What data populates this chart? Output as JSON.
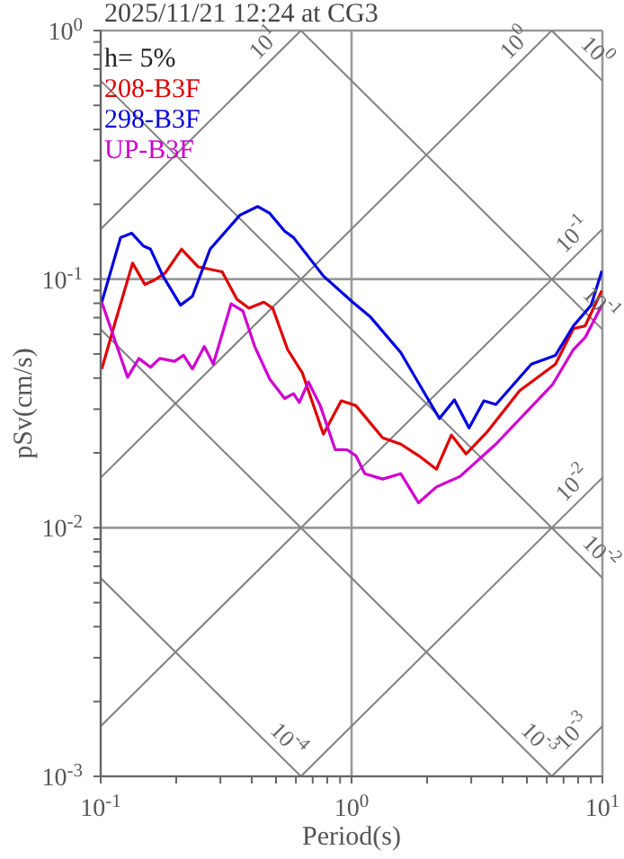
{
  "chart_data": {
    "type": "line",
    "title": "2025/11/21 12:24 at CG3",
    "xlabel": "Period(s)",
    "ylabel": "pSv(cm/s)",
    "legend_title": "h= 5%",
    "legend": "top left",
    "log": "xy",
    "grid": true,
    "marker": "none",
    "line_style": "solid",
    "xlim": [
      0.1,
      10
    ],
    "ylim": [
      0.001,
      1
    ],
    "xticks": [
      {
        "value": 0.1,
        "label": "10$^{-1}$"
      },
      {
        "value": 0.2,
        "label": null
      },
      {
        "value": 0.3,
        "label": null
      },
      {
        "value": 0.4,
        "label": null
      },
      {
        "value": 0.5,
        "label": null
      },
      {
        "value": 0.6,
        "label": null
      },
      {
        "value": 0.7,
        "label": null
      },
      {
        "value": 0.8,
        "label": null
      },
      {
        "value": 0.9,
        "label": null
      },
      {
        "value": 1,
        "label": "10$^{0}$"
      },
      {
        "value": 2,
        "label": null
      },
      {
        "value": 3,
        "label": null
      },
      {
        "value": 4,
        "label": null
      },
      {
        "value": 5,
        "label": null
      },
      {
        "value": 6,
        "label": null
      },
      {
        "value": 7,
        "label": null
      },
      {
        "value": 8,
        "label": null
      },
      {
        "value": 9,
        "label": null
      },
      {
        "value": 10,
        "label": "10$^{1}$"
      }
    ],
    "yticks": [
      {
        "value": 0.001,
        "label": "10$^{-3}$"
      },
      {
        "value": 0.002,
        "label": null
      },
      {
        "value": 0.003,
        "label": null
      },
      {
        "value": 0.004,
        "label": null
      },
      {
        "value": 0.005,
        "label": null
      },
      {
        "value": 0.006,
        "label": null
      },
      {
        "value": 0.007,
        "label": null
      },
      {
        "value": 0.008,
        "label": null
      },
      {
        "value": 0.009,
        "label": null
      },
      {
        "value": 0.01,
        "label": "10$^{-2}$"
      },
      {
        "value": 0.02,
        "label": null
      },
      {
        "value": 0.03,
        "label": null
      },
      {
        "value": 0.04,
        "label": null
      },
      {
        "value": 0.05,
        "label": null
      },
      {
        "value": 0.06,
        "label": null
      },
      {
        "value": 0.07,
        "label": null
      },
      {
        "value": 0.08,
        "label": null
      },
      {
        "value": 0.09,
        "label": null
      },
      {
        "value": 0.1,
        "label": "10$^{-1}$"
      },
      {
        "value": 0.2,
        "label": null
      },
      {
        "value": 0.3,
        "label": null
      },
      {
        "value": 0.4,
        "label": null
      },
      {
        "value": 0.5,
        "label": null
      },
      {
        "value": 0.6,
        "label": null
      },
      {
        "value": 0.7,
        "label": null
      },
      {
        "value": 0.8,
        "label": null
      },
      {
        "value": 0.9,
        "label": null
      },
      {
        "value": 1,
        "label": "10$^{0}$"
      }
    ],
    "series": [
      {
        "type": "line",
        "color": "#808080",
        "x": [
          0.1,
          0.628
        ],
        "values": [
          0.159,
          1
        ]
      },
      {
        "type": "line",
        "color": "#808080",
        "x": [
          0.1,
          6.28
        ],
        "values": [
          0.0159,
          1
        ]
      },
      {
        "type": "line",
        "color": "#808080",
        "x": [
          0.1,
          10
        ],
        "values": [
          0.00159,
          0.159
        ]
      },
      {
        "type": "line",
        "color": "#808080",
        "x": [
          0.628,
          10
        ],
        "values": [
          0.001,
          0.0159
        ]
      },
      {
        "type": "line",
        "color": "#808080",
        "x": [
          6.28,
          10
        ],
        "values": [
          0.001,
          0.00159
        ]
      },
      {
        "type": "line",
        "color": "#808080",
        "x": [
          6.28,
          10
        ],
        "values": [
          1,
          0.628
        ]
      },
      {
        "type": "line",
        "color": "#808080",
        "x": [
          0.628,
          10
        ],
        "values": [
          1,
          0.0628
        ]
      },
      {
        "type": "line",
        "color": "#808080",
        "x": [
          0.1,
          10
        ],
        "values": [
          0.628,
          0.00628
        ]
      },
      {
        "type": "line",
        "color": "#808080",
        "x": [
          0.1,
          6.28
        ],
        "values": [
          0.0628,
          0.001
        ]
      },
      {
        "type": "line",
        "color": "#808080",
        "x": [
          0.1,
          0.628
        ],
        "values": [
          0.00628,
          0.001
        ]
      },
      {
        "name": "208-B3F",
        "color": "#e00000",
        "x": [
          0.101,
          0.114,
          0.134,
          0.15,
          0.163,
          0.181,
          0.21,
          0.245,
          0.305,
          0.349,
          0.39,
          0.447,
          0.485,
          0.556,
          0.637,
          0.772,
          0.91,
          1.04,
          1.33,
          1.57,
          1.85,
          2.18,
          2.5,
          2.86,
          3.46,
          4.68,
          6.5,
          7.66,
          8.53,
          9.95
        ],
        "values": [
          0.0435,
          0.0667,
          0.116,
          0.0952,
          0.0989,
          0.106,
          0.132,
          0.112,
          0.107,
          0.083,
          0.0764,
          0.0808,
          0.0764,
          0.0521,
          0.0419,
          0.0238,
          0.0324,
          0.031,
          0.023,
          0.0217,
          0.0195,
          0.0172,
          0.0236,
          0.0198,
          0.0242,
          0.0356,
          0.0455,
          0.0632,
          0.0648,
          0.09
        ]
      },
      {
        "name": "298-B3F",
        "color": "#0000e0",
        "x": [
          0.101,
          0.12,
          0.133,
          0.148,
          0.158,
          0.177,
          0.208,
          0.232,
          0.273,
          0.359,
          0.423,
          0.472,
          0.541,
          0.587,
          0.772,
          1.01,
          1.19,
          1.57,
          1.9,
          2.24,
          2.57,
          2.94,
          3.37,
          3.76,
          5.21,
          6.5,
          7.66,
          9.02,
          9.95
        ],
        "values": [
          0.0808,
          0.147,
          0.153,
          0.136,
          0.132,
          0.103,
          0.0786,
          0.0853,
          0.132,
          0.181,
          0.196,
          0.184,
          0.156,
          0.147,
          0.103,
          0.0808,
          0.0704,
          0.0507,
          0.0365,
          0.0275,
          0.0327,
          0.0252,
          0.0324,
          0.0313,
          0.0455,
          0.0494,
          0.0648,
          0.0786,
          0.108
        ]
      },
      {
        "name": "UP-B3F",
        "color": "#d000d0",
        "x": [
          0.101,
          0.114,
          0.128,
          0.142,
          0.158,
          0.172,
          0.197,
          0.214,
          0.232,
          0.259,
          0.281,
          0.331,
          0.369,
          0.411,
          0.472,
          0.541,
          0.587,
          0.619,
          0.673,
          0.75,
          0.861,
          0.959,
          1.04,
          1.13,
          1.33,
          1.57,
          1.85,
          2.18,
          2.71,
          3.76,
          6.32,
          7.66,
          8.53,
          9.95
        ],
        "values": [
          0.0808,
          0.0566,
          0.0403,
          0.048,
          0.0442,
          0.048,
          0.0467,
          0.0494,
          0.0435,
          0.0536,
          0.0455,
          0.0795,
          0.0744,
          0.0536,
          0.0396,
          0.0331,
          0.0346,
          0.0319,
          0.0386,
          0.031,
          0.0206,
          0.0206,
          0.0195,
          0.0165,
          0.0157,
          0.0165,
          0.0126,
          0.0146,
          0.0161,
          0.0217,
          0.0376,
          0.0521,
          0.0582,
          0.0786
        ]
      }
    ],
    "annotations": [
      {
        "text": "10$^{1}$",
        "x": 0.5,
        "y": 0.796
      },
      {
        "text": "10$^{0}$",
        "x": 5,
        "y": 0.796
      },
      {
        "text": "10$^{0}$",
        "x": 8.5,
        "y": 0.739
      },
      {
        "text": "10$^{-1}$",
        "x": 8.5,
        "y": 0.135
      },
      {
        "text": "10$^{-1}$",
        "x": 8.8,
        "y": 0.0714
      },
      {
        "text": "10$^{-2}$",
        "x": 8.5,
        "y": 0.0135
      },
      {
        "text": "10$^{-2}$",
        "x": 8.8,
        "y": 0.00714
      },
      {
        "text": "10$^{-4}$",
        "x": 0.5,
        "y": 0.00126
      },
      {
        "text": "10$^{-3}$",
        "x": 5,
        "y": 0.00126
      },
      {
        "text": "10$^{-3}$",
        "x": 8.5,
        "y": 0.00135
      }
    ]
  }
}
